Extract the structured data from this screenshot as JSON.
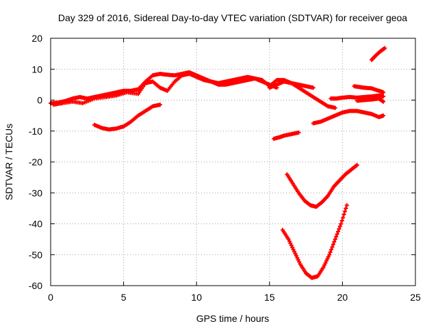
{
  "chart_data": {
    "type": "scatter",
    "title": "Day 329 of 2016, Sidereal Day-to-day VTEC variation (SDTVAR) for receiver geoa",
    "xlabel": "GPS time / hours",
    "ylabel": "SDTVAR / TECUs",
    "xlim": [
      0,
      25
    ],
    "ylim": [
      -60,
      20
    ],
    "xticks": [
      0,
      5,
      10,
      15,
      20,
      25
    ],
    "yticks": [
      -60,
      -50,
      -40,
      -30,
      -20,
      -10,
      0,
      10,
      20
    ],
    "xtick_labels": [
      "0",
      "5",
      "10",
      "15",
      "20",
      "25"
    ],
    "ytick_labels": [
      "-60",
      "-50",
      "-40",
      "-30",
      "-20",
      "-10",
      "0",
      "10",
      "20"
    ],
    "grid": true,
    "marker": "+",
    "color": "#ff0000",
    "series": [
      {
        "name": "track-1",
        "x": [
          0,
          0.5,
          1,
          1.5,
          2,
          2.5,
          3,
          3.5,
          4,
          4.5,
          5,
          5.5,
          6,
          6.5,
          7,
          7.5,
          8,
          8.5,
          9,
          9.5,
          10,
          10.5,
          11,
          11.5,
          12,
          12.5,
          13,
          13.5,
          14,
          14.5,
          15,
          15.5
        ],
        "y": [
          -1,
          -0.8,
          -0.3,
          0.5,
          1,
          0.5,
          1,
          1.5,
          2,
          2.5,
          3,
          3,
          3.5,
          6,
          8,
          8.5,
          8.2,
          8,
          8.5,
          9,
          8,
          7,
          6,
          5.5,
          6,
          6.5,
          7,
          7.5,
          7,
          6,
          5,
          4
        ]
      },
      {
        "name": "track-2",
        "x": [
          0.2,
          0.8,
          1.5,
          2.2,
          3,
          3.8,
          4.5,
          5.2,
          6,
          6.5,
          7,
          7.5,
          8,
          8.5,
          9,
          9.5,
          10,
          10.5,
          11,
          11.5,
          12,
          12.5,
          13,
          13.5,
          14,
          14.5,
          15,
          15.5,
          16,
          16.5,
          17,
          17.5,
          18,
          18.5,
          19,
          19.5
        ],
        "y": [
          -1.5,
          -1,
          -0.5,
          -1,
          0.5,
          1,
          1.5,
          2.5,
          2,
          5.5,
          6,
          4,
          3,
          6,
          8,
          8.5,
          7.5,
          6.5,
          6,
          5,
          5,
          5.5,
          6,
          6.5,
          7,
          6.5,
          4.5,
          6.5,
          6.5,
          5.5,
          4,
          2.5,
          1,
          -0.5,
          -2,
          -2.5
        ]
      },
      {
        "name": "track-3",
        "x": [
          15,
          15.5,
          16,
          16.5,
          17,
          17.5,
          18
        ],
        "y": [
          4,
          5,
          6,
          5.5,
          5,
          4.5,
          4
        ]
      },
      {
        "name": "track-4",
        "x": [
          3,
          3.5,
          4,
          4.5,
          5,
          5.5,
          6,
          6.5,
          7,
          7.5
        ],
        "y": [
          -8,
          -9,
          -9.5,
          -9.2,
          -8.5,
          -7,
          -5,
          -3.5,
          -2,
          -1.5
        ]
      },
      {
        "name": "track-5",
        "x": [
          15.3,
          15.7,
          16,
          16.5,
          17
        ],
        "y": [
          -12.5,
          -12,
          -11.5,
          -11,
          -10.5
        ]
      },
      {
        "name": "track-6",
        "x": [
          18,
          18.5,
          19,
          19.5,
          20,
          20.5,
          21,
          21.5,
          22,
          22.5,
          22.8
        ],
        "y": [
          -7.5,
          -7,
          -6,
          -5,
          -4,
          -3.5,
          -3.5,
          -4,
          -4.5,
          -5.5,
          -5
        ]
      },
      {
        "name": "track-7",
        "x": [
          19.2,
          19.6,
          20,
          20.5,
          21,
          21.5,
          22,
          22.5,
          22.8
        ],
        "y": [
          0.5,
          0.5,
          0.8,
          1,
          0.8,
          1,
          1.2,
          1.5,
          1.2
        ]
      },
      {
        "name": "track-8",
        "x": [
          20.8,
          21.2,
          21.5,
          22,
          22.5,
          22.8
        ],
        "y": [
          4.5,
          4.2,
          4,
          3.8,
          3,
          2.5
        ]
      },
      {
        "name": "track-9",
        "x": [
          21,
          21.5,
          22,
          22.5,
          22.8
        ],
        "y": [
          -0.2,
          0,
          0.2,
          0.5,
          -0.5
        ]
      },
      {
        "name": "track-10",
        "x": [
          22,
          22.3,
          22.6,
          22.9
        ],
        "y": [
          13,
          14.5,
          15.8,
          16.8
        ]
      },
      {
        "name": "track-11",
        "x": [
          16.2,
          16.6,
          17,
          17.4,
          17.8,
          18.2,
          18.6,
          19,
          19.4,
          19.8,
          20.2,
          20.6,
          21
        ],
        "y": [
          -24,
          -27,
          -30,
          -32.5,
          -34,
          -34.5,
          -33,
          -31,
          -28,
          -26,
          -24,
          -22.5,
          -21
        ]
      },
      {
        "name": "track-12",
        "x": [
          15.9,
          16.3,
          16.7,
          17.1,
          17.5,
          17.9,
          18.3,
          18.7,
          19.1,
          19.5,
          19.9,
          20.3
        ],
        "y": [
          -42,
          -45,
          -49,
          -53,
          -56,
          -57.5,
          -57,
          -54,
          -50,
          -45,
          -40,
          -34
        ]
      }
    ]
  }
}
